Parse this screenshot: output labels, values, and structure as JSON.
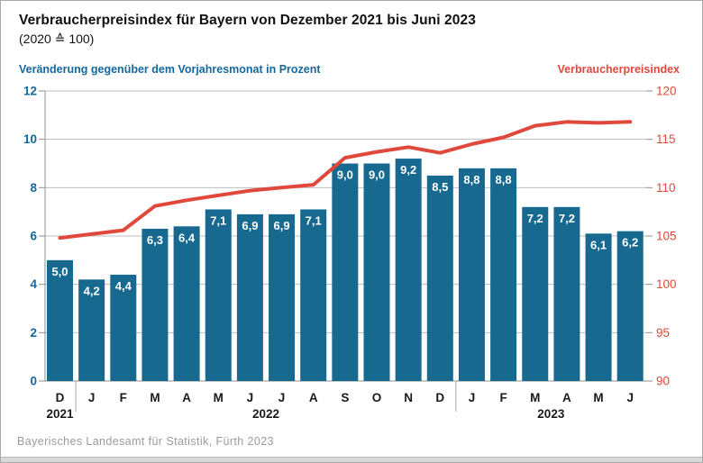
{
  "header": {
    "title": "Verbraucherpreisindex für Bayern von Dezember 2021 bis Juni 2023",
    "subtitle": "(2020 ≙ 100)"
  },
  "axes": {
    "left_label": "Veränderung gegenüber dem Vorjahresmonat in Prozent",
    "right_label": "Verbraucherpreisindex"
  },
  "footer": {
    "text": "Bayerisches Landesamt für Statistik, Fürth 2023"
  },
  "colors": {
    "bar": "#176990",
    "line": "#e0483c",
    "left_axis_text": "#15689e",
    "right_axis_text": "#e0483c",
    "grid": "#bdbdbd",
    "axis": "#8f8f8f",
    "bar_label": "#ffffff",
    "month_label": "#1a1a1a",
    "separator": "#aaaaaa"
  },
  "chart_data": {
    "type": "bar",
    "title": "Verbraucherpreisindex für Bayern von Dezember 2021 bis Juni 2023 (2020 ≙ 100)",
    "categories": [
      "D",
      "J",
      "F",
      "M",
      "A",
      "M",
      "J",
      "J",
      "A",
      "S",
      "O",
      "N",
      "D",
      "J",
      "F",
      "M",
      "A",
      "M",
      "J"
    ],
    "year_groups": [
      {
        "label": "2021",
        "months": 1
      },
      {
        "label": "2022",
        "months": 12
      },
      {
        "label": "2023",
        "months": 6
      }
    ],
    "series": [
      {
        "name": "Veränderung gegenüber dem Vorjahresmonat in Prozent",
        "type": "bar",
        "axis": "left",
        "values": [
          5.0,
          4.2,
          4.4,
          6.3,
          6.4,
          7.1,
          6.9,
          6.9,
          7.1,
          9.0,
          9.0,
          9.2,
          8.5,
          8.8,
          8.8,
          7.2,
          7.2,
          6.1,
          6.2
        ],
        "labels": [
          "5,0",
          "4,2",
          "4,4",
          "6,3",
          "6,4",
          "7,1",
          "6,9",
          "6,9",
          "7,1",
          "9,0",
          "9,0",
          "9,2",
          "8,5",
          "8,8",
          "8,8",
          "7,2",
          "7,2",
          "6,1",
          "6,2"
        ]
      },
      {
        "name": "Verbraucherpreisindex",
        "type": "line",
        "axis": "right",
        "values": [
          104.8,
          105.2,
          105.6,
          108.1,
          108.7,
          109.2,
          109.7,
          110.0,
          110.3,
          113.1,
          113.7,
          114.2,
          113.6,
          114.5,
          115.2,
          116.4,
          116.8,
          116.7,
          116.8
        ]
      }
    ],
    "left_axis": {
      "min": 0,
      "max": 12,
      "step": 2,
      "ticks": [
        "0",
        "2",
        "4",
        "6",
        "8",
        "10",
        "12"
      ]
    },
    "right_axis": {
      "min": 90,
      "max": 120,
      "step": 5,
      "ticks": [
        "90",
        "95",
        "100",
        "105",
        "110",
        "115",
        "120"
      ]
    },
    "grid": true,
    "legend_position": "none"
  }
}
